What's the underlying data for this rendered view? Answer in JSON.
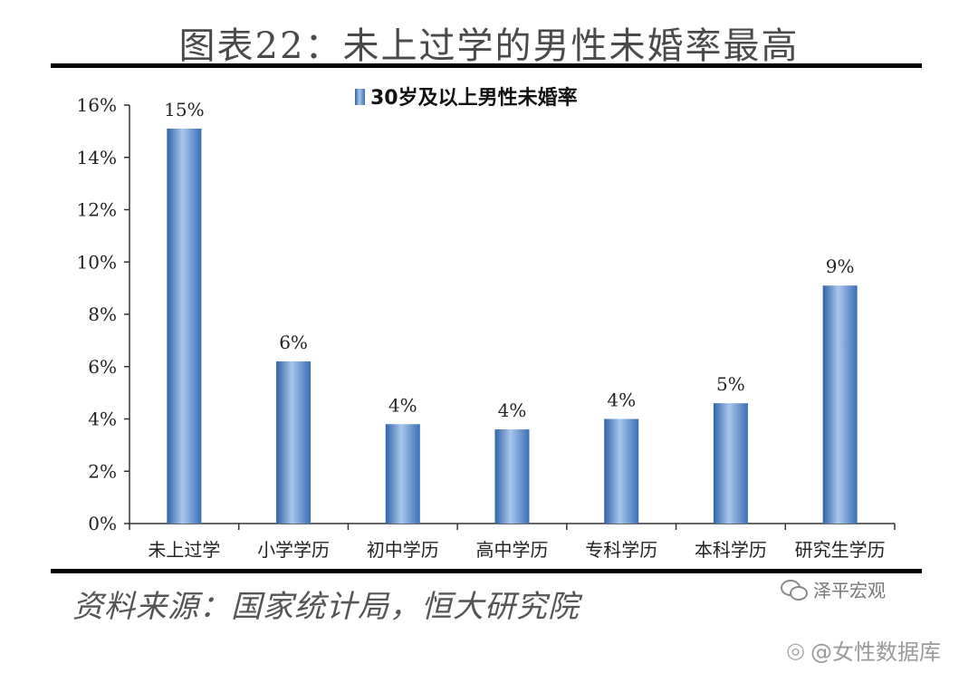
{
  "title": "图表22：未上过学的男性未婚率最高",
  "source": "资料来源：国家统计局，恒大研究院",
  "watermark_wechat": "泽平宏观",
  "watermark_weibo": "@女性数据库",
  "icons": {
    "wechat": "wechat-icon",
    "weibo": "weibo-icon"
  },
  "chart_data": {
    "type": "bar",
    "categories": [
      "未上过学",
      "小学学历",
      "初中学历",
      "高中学历",
      "专科学历",
      "本科学历",
      "研究生学历"
    ],
    "series": [
      {
        "name": "30岁及以上男性未婚率",
        "values": [
          15.1,
          6.2,
          3.8,
          3.6,
          4.0,
          4.6,
          9.1
        ]
      }
    ],
    "data_labels": [
      "15%",
      "6%",
      "4%",
      "4%",
      "4%",
      "5%",
      "9%"
    ],
    "y_ticks": [
      "0%",
      "2%",
      "4%",
      "6%",
      "8%",
      "10%",
      "12%",
      "14%",
      "16%"
    ],
    "ylim": [
      0,
      16
    ],
    "ytick_step": 2,
    "legend_position": "top-center",
    "grid": false,
    "bar_color": "#5b8fd0"
  }
}
